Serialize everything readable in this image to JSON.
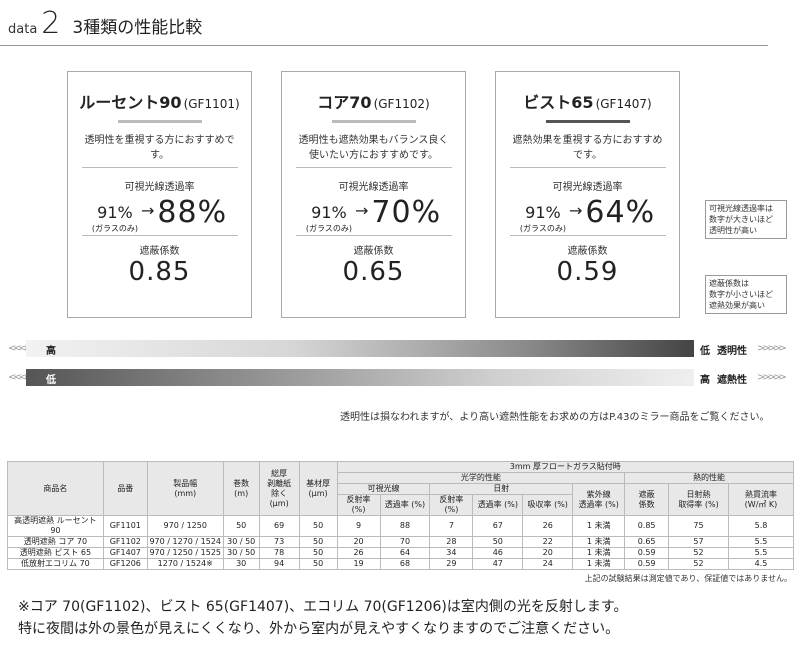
{
  "header": {
    "label": "data",
    "number": "2",
    "title": "3種類の性能比較"
  },
  "cards": [
    {
      "name": "ルーセント90",
      "code": "(GF1101)",
      "desc1": "透明性を重視する方におすすめです。",
      "desc2": "",
      "vlt_label": "可視光線透過率",
      "glass_value": "91%",
      "glass_note": "(ガラスのみ)",
      "arrow": "→",
      "value": "88%",
      "coef_label": "遮蔽係数",
      "coef": "0.85"
    },
    {
      "name": "コア70",
      "code": "(GF1102)",
      "desc1": "透明性も遮熱効果もバランス良く",
      "desc2": "使いたい方におすすめです。",
      "vlt_label": "可視光線透過率",
      "glass_value": "91%",
      "glass_note": "(ガラスのみ)",
      "arrow": "→",
      "value": "70%",
      "coef_label": "遮蔽係数",
      "coef": "0.65"
    },
    {
      "name": "ビスト65",
      "code": "(GF1407)",
      "desc1": "遮熱効果を重視する方におすすめです。",
      "desc2": "",
      "vlt_label": "可視光線透過率",
      "glass_value": "91%",
      "glass_note": "(ガラスのみ)",
      "arrow": "→",
      "value": "64%",
      "coef_label": "遮蔽係数",
      "coef": "0.59"
    }
  ],
  "notes": {
    "vlt": [
      "可視光線透過率は",
      "数字が大きいほど",
      "透明性が高い"
    ],
    "coef": [
      "遮蔽係数は",
      "数字が小さいほど",
      "遮熱効果が高い"
    ]
  },
  "bars": {
    "bar1": {
      "left": "高",
      "right_a": "低",
      "right_b": "透明性"
    },
    "bar2": {
      "left": "低",
      "right_a": "高",
      "right_b": "遮熱性"
    },
    "chevrons_left": "<<<<<",
    "chevrons_right": ">>>>>"
  },
  "mid_text": "透明性は損なわれますが、より高い遮熱性能をお求めの方はP.43のミラー商品をご覧ください。",
  "table": {
    "h_name": "商品名",
    "h_code": "品番",
    "h_width": "製品幅",
    "h_width_unit": "(mm)",
    "h_roll": "巻数",
    "h_roll_unit": "(m)",
    "h_total1": "総厚",
    "h_total2": "剥離紙",
    "h_total3": "除く",
    "h_total4": "(μm)",
    "h_base": "基材厚",
    "h_base_unit": "(μm)",
    "h_top": "3mm 厚フロートガラス貼付時",
    "h_optical": "光学的性能",
    "h_thermal": "熱的性能",
    "h_visible": "可視光線",
    "h_solar": "日射",
    "h_uv1": "紫外線",
    "h_uv2": "透過率 (%)",
    "h_sc1": "遮蔽",
    "h_sc2": "係数",
    "h_sh1": "日射熱",
    "h_sh2": "取得率 (%)",
    "h_u1": "熱貫流率",
    "h_u2": "(W/㎡ K)",
    "h_refl": "反射率 (%)",
    "h_trans": "透過率 (%)",
    "h_abs": "吸収率 (%)",
    "rows": [
      [
        "高透明遮熱 ルーセント 90",
        "GF1101",
        "970 / 1250",
        "50",
        "69",
        "50",
        "9",
        "88",
        "7",
        "67",
        "26",
        "1 未満",
        "0.85",
        "75",
        "5.8"
      ],
      [
        "透明遮熱 コア 70",
        "GF1102",
        "970 / 1270 / 1524",
        "30 / 50",
        "73",
        "50",
        "20",
        "70",
        "28",
        "50",
        "22",
        "1 未満",
        "0.65",
        "57",
        "5.5"
      ],
      [
        "透明遮熱 ビスト 65",
        "GF1407",
        "970 / 1250 / 1525",
        "30 / 50",
        "78",
        "50",
        "26",
        "64",
        "34",
        "46",
        "20",
        "1 未満",
        "0.59",
        "52",
        "5.5"
      ],
      [
        "低放射エコリム 70",
        "GF1206",
        "1270 / 1524※",
        "30",
        "94",
        "50",
        "19",
        "68",
        "29",
        "47",
        "24",
        "1 未満",
        "0.59",
        "52",
        "4.5"
      ]
    ],
    "footnote": "上記の試験結果は測定値であり、保証値ではありません。"
  },
  "bottom": {
    "line1": "※コア 70(GF1102)、ビスト 65(GF1407)、エコリム 70(GF1206)は室内側の光を反射します。",
    "line2": "特に夜間は外の景色が見えにくくなり、外から室内が見えやすくなりますのでご注意ください。"
  }
}
